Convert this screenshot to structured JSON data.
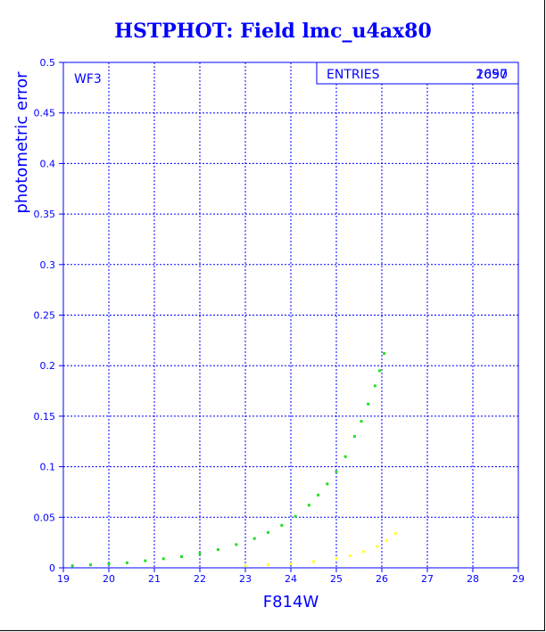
{
  "chart_data": {
    "type": "scatter",
    "title": "HSTPHOT: Field lmc_u4ax80",
    "xlabel": "F814W",
    "ylabel": "photometric error",
    "xlim": [
      19,
      29
    ],
    "ylim": [
      0,
      0.5
    ],
    "x_ticks": [
      "19",
      "20",
      "21",
      "22",
      "23",
      "24",
      "25",
      "26",
      "27",
      "28",
      "29"
    ],
    "y_ticks": [
      "0",
      "0.05",
      "0.1",
      "0.15",
      "0.2",
      "0.25",
      "0.3",
      "0.35",
      "0.4",
      "0.45",
      "0.5"
    ],
    "grid": true,
    "panel_label": "WF3",
    "stats_box": {
      "label": "ENTRIES",
      "value_a": "2097",
      "value_b": "1650"
    },
    "colors": {
      "axes": "#0000ff",
      "primary_series": "#22dd22",
      "secondary_series": "#ffff33"
    },
    "series": [
      {
        "color": "green",
        "x": [
          19.2,
          19.6,
          20.0,
          20.4,
          20.8,
          21.2,
          21.6,
          22.0,
          22.4,
          22.8,
          23.2,
          23.5,
          23.8,
          24.1,
          24.4,
          24.6,
          24.8,
          25.0,
          25.2,
          25.4,
          25.55,
          25.7,
          25.85,
          25.95,
          26.05
        ],
        "y": [
          0.002,
          0.003,
          0.004,
          0.005,
          0.007,
          0.009,
          0.011,
          0.014,
          0.018,
          0.023,
          0.029,
          0.035,
          0.042,
          0.051,
          0.062,
          0.072,
          0.083,
          0.095,
          0.11,
          0.13,
          0.145,
          0.162,
          0.18,
          0.195,
          0.212
        ]
      },
      {
        "color": "yellow",
        "x": [
          23.0,
          23.5,
          24.0,
          24.5,
          25.0,
          25.3,
          25.6,
          25.9,
          26.1,
          26.3
        ],
        "y": [
          0.002,
          0.003,
          0.004,
          0.006,
          0.009,
          0.012,
          0.016,
          0.021,
          0.027,
          0.034
        ]
      }
    ]
  }
}
